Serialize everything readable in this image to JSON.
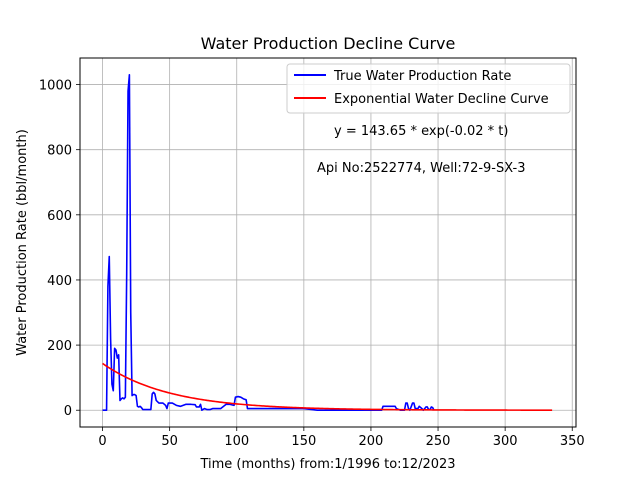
{
  "chart_data": {
    "type": "line",
    "title": "Water Production Decline Curve",
    "xlabel": "Time (months) from:1/1996 to:12/2023",
    "ylabel": "Water Production Rate (bbl/month)",
    "xlim": [
      -16.8,
      352.8
    ],
    "ylim": [
      -51.5,
      1081.5
    ],
    "xticks": [
      0,
      50,
      100,
      150,
      200,
      250,
      300,
      350
    ],
    "yticks": [
      0,
      200,
      400,
      600,
      800,
      1000
    ],
    "grid": true,
    "legend_position": "top-right",
    "annotations": [
      {
        "text": "y = 143.65 * exp(-0.02 * t)",
        "x": 172,
        "y": 843
      },
      {
        "text": "Api No:2522774, Well:72-9-SX-3",
        "x": 159,
        "y": 730
      }
    ],
    "series": [
      {
        "name": "True Water Production Rate",
        "color": "#0000ff",
        "points": [
          [
            0,
            0
          ],
          [
            3,
            0
          ],
          [
            4,
            380
          ],
          [
            5,
            472
          ],
          [
            6,
            220
          ],
          [
            7,
            80
          ],
          [
            8,
            60
          ],
          [
            9,
            190
          ],
          [
            10,
            185
          ],
          [
            11,
            160
          ],
          [
            12,
            170
          ],
          [
            13,
            30
          ],
          [
            14,
            35
          ],
          [
            15,
            38
          ],
          [
            16,
            35
          ],
          [
            17,
            40
          ],
          [
            18,
            420
          ],
          [
            19,
            980
          ],
          [
            20,
            1030
          ],
          [
            21,
            300
          ],
          [
            22,
            45
          ],
          [
            23,
            48
          ],
          [
            24,
            48
          ],
          [
            25,
            45
          ],
          [
            26,
            12
          ],
          [
            27,
            10
          ],
          [
            28,
            12
          ],
          [
            29,
            8
          ],
          [
            30,
            2
          ],
          [
            33,
            2
          ],
          [
            36,
            2
          ],
          [
            37,
            50
          ],
          [
            38,
            55
          ],
          [
            39,
            50
          ],
          [
            40,
            30
          ],
          [
            42,
            22
          ],
          [
            45,
            22
          ],
          [
            47,
            15
          ],
          [
            48,
            5
          ],
          [
            49,
            22
          ],
          [
            52,
            22
          ],
          [
            55,
            15
          ],
          [
            58,
            12
          ],
          [
            60,
            15
          ],
          [
            62,
            18
          ],
          [
            66,
            18
          ],
          [
            69,
            17
          ],
          [
            70,
            10
          ],
          [
            72,
            10
          ],
          [
            73,
            18
          ],
          [
            74,
            0
          ],
          [
            76,
            5
          ],
          [
            78,
            2
          ],
          [
            80,
            2
          ],
          [
            82,
            5
          ],
          [
            85,
            5
          ],
          [
            88,
            5
          ],
          [
            92,
            18
          ],
          [
            95,
            18
          ],
          [
            98,
            15
          ],
          [
            99,
            40
          ],
          [
            101,
            42
          ],
          [
            103,
            40
          ],
          [
            105,
            35
          ],
          [
            107,
            32
          ],
          [
            108,
            5
          ],
          [
            110,
            5
          ],
          [
            115,
            5
          ],
          [
            120,
            5
          ],
          [
            125,
            5
          ],
          [
            130,
            5
          ],
          [
            135,
            5
          ],
          [
            140,
            5
          ],
          [
            145,
            5
          ],
          [
            150,
            5
          ],
          [
            160,
            0
          ],
          [
            170,
            0
          ],
          [
            180,
            0
          ],
          [
            190,
            0
          ],
          [
            200,
            0
          ],
          [
            208,
            0
          ],
          [
            209,
            12
          ],
          [
            212,
            12
          ],
          [
            215,
            12
          ],
          [
            218,
            12
          ],
          [
            219,
            5
          ],
          [
            222,
            0
          ],
          [
            225,
            0
          ],
          [
            226,
            22
          ],
          [
            227,
            22
          ],
          [
            228,
            5
          ],
          [
            229,
            0
          ],
          [
            231,
            22
          ],
          [
            232,
            22
          ],
          [
            233,
            5
          ],
          [
            235,
            5
          ],
          [
            236,
            12
          ],
          [
            238,
            5
          ],
          [
            239,
            0
          ],
          [
            241,
            10
          ],
          [
            242,
            10
          ],
          [
            243,
            2
          ],
          [
            244,
            2
          ],
          [
            245,
            10
          ],
          [
            246,
            8
          ],
          [
            247,
            0
          ]
        ]
      },
      {
        "name": "Exponential Water Decline Curve",
        "color": "#ff0000",
        "model": {
          "a": 143.65,
          "b": 0.02,
          "t_start": 0,
          "t_end": 335
        }
      }
    ]
  }
}
